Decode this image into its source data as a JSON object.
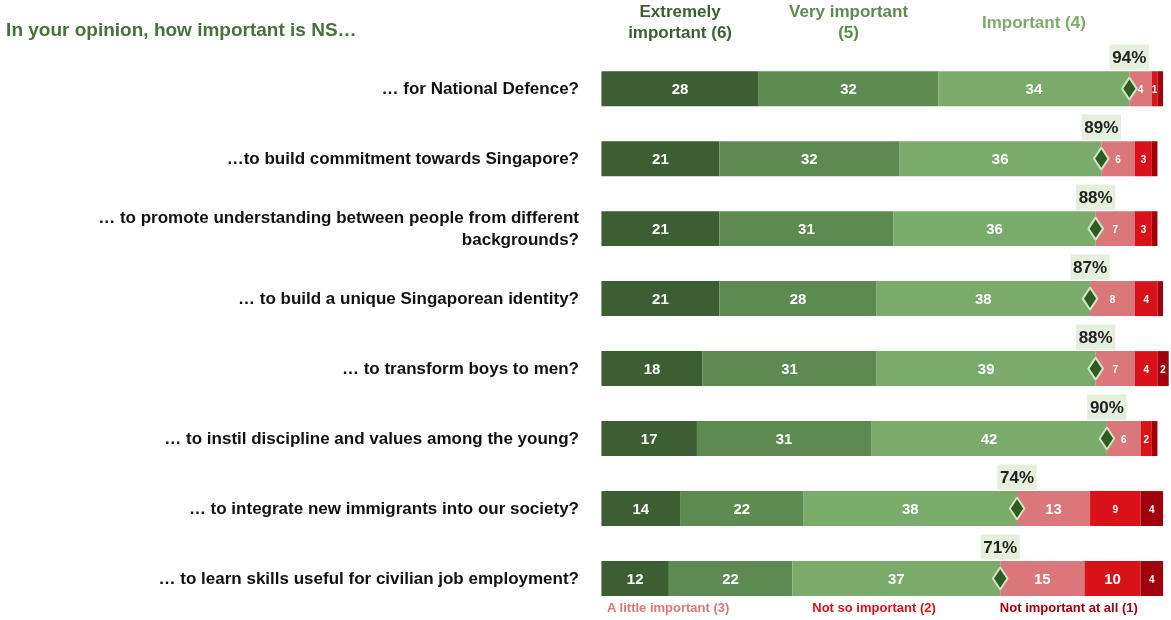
{
  "chart_data": {
    "type": "bar",
    "orientation": "horizontal",
    "stacked": true,
    "legend": "top",
    "grid": false,
    "title": "In your opinion, how important is NS…",
    "categories": [
      "… for National Defence?",
      "…to build commitment towards Singapore?",
      "… to promote understanding between people from different backgrounds?",
      "… to build a unique Singaporean identity?",
      "… to transform boys to men?",
      "… to instil discipline and values among the young?",
      "… to integrate new immigrants into our society?",
      "… to learn skills useful for civilian job employment?"
    ],
    "series": [
      {
        "name": "Extremely important (6)",
        "color": "#3b5e33",
        "values": [
          28,
          21,
          21,
          21,
          18,
          17,
          14,
          12
        ],
        "value_labels": [
          "28",
          "21",
          "21",
          "21",
          "18",
          "17",
          "14",
          "12"
        ]
      },
      {
        "name": "Very important (5)",
        "color": "#5c8a50",
        "values": [
          32,
          32,
          31,
          28,
          31,
          31,
          22,
          22
        ],
        "value_labels": [
          "32",
          "32",
          "31",
          "28",
          "31",
          "31",
          "22",
          "22"
        ]
      },
      {
        "name": "Important (4)",
        "color": "#7bab6a",
        "values": [
          34,
          36,
          36,
          38,
          39,
          42,
          38,
          37
        ],
        "value_labels": [
          "34",
          "36",
          "36",
          "38",
          "39",
          "42",
          "38",
          "37"
        ]
      },
      {
        "name": "A little important (3)",
        "color": "#d9777a",
        "values": [
          4,
          6,
          7,
          8,
          7,
          6,
          13,
          15
        ],
        "value_labels": [
          "4",
          "6",
          "7",
          "8",
          "7",
          "6",
          "13",
          "15"
        ]
      },
      {
        "name": "Not so important (2)",
        "color": "#d9121a",
        "values": [
          1,
          3,
          3,
          4,
          4,
          2,
          9,
          10
        ],
        "value_labels": [
          "1",
          "3",
          "3",
          "4",
          "4",
          "2",
          "9",
          "10"
        ]
      },
      {
        "name": "Not important at all (1)",
        "color": "#a0000c",
        "values": [
          1,
          1,
          1,
          1,
          2,
          1,
          4,
          4
        ],
        "value_labels": [
          null,
          null,
          null,
          null,
          "2",
          null,
          "4",
          "4"
        ]
      },
      {
        "type": "scatter",
        "marker": "diamond",
        "color": "#2f5a22",
        "values": [
          94,
          89,
          88,
          87,
          88,
          90,
          74,
          71
        ],
        "value_labels": [
          "94%",
          "89%",
          "88%",
          "87%",
          "88%",
          "90%",
          "74%",
          "71%"
        ]
      }
    ]
  }
}
